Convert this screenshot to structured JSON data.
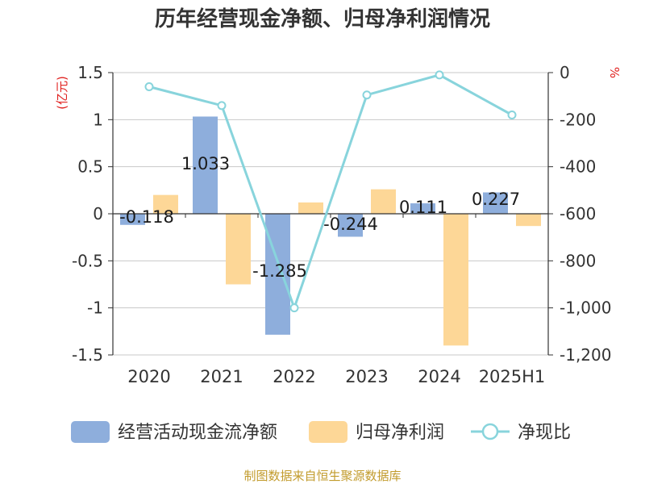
{
  "chart_data": {
    "type": "bar+line",
    "title": "历年经营现金净额、归母净利润情况",
    "y_left_unit": "(亿元)",
    "y_right_unit": "%",
    "categories": [
      "2020",
      "2021",
      "2022",
      "2023",
      "2024",
      "2025H1"
    ],
    "y_left_ticks": [
      "1.5",
      "1",
      "0.5",
      "0",
      "-0.5",
      "-1",
      "-1.5"
    ],
    "y_right_ticks": [
      "0",
      "-200",
      "-400",
      "-600",
      "-800",
      "-1,000",
      "-1,200"
    ],
    "y_left_range": [
      -1.5,
      1.5
    ],
    "y_right_range": [
      -1200,
      0
    ],
    "series": [
      {
        "name": "经营活动现金流净额",
        "type": "bar",
        "axis": "left",
        "color": "#8eaedc",
        "values": [
          -0.118,
          1.033,
          -1.285,
          -0.244,
          0.111,
          0.227
        ],
        "labels": [
          "-0.118",
          "1.033",
          "-1.285",
          "-0.244",
          "0.111",
          "0.227"
        ]
      },
      {
        "name": "归母净利润",
        "type": "bar",
        "axis": "left",
        "color": "#fdd797",
        "values": [
          0.2,
          -0.75,
          0.12,
          0.26,
          -1.4,
          -0.13
        ]
      },
      {
        "name": "净现比",
        "type": "line",
        "axis": "right",
        "color": "#88d4dc",
        "values": [
          -60,
          -140,
          -1000,
          -95,
          -10,
          -180
        ]
      }
    ],
    "legend_position": "bottom",
    "grid": true
  },
  "source": "制图数据来自恒生聚源数据库"
}
